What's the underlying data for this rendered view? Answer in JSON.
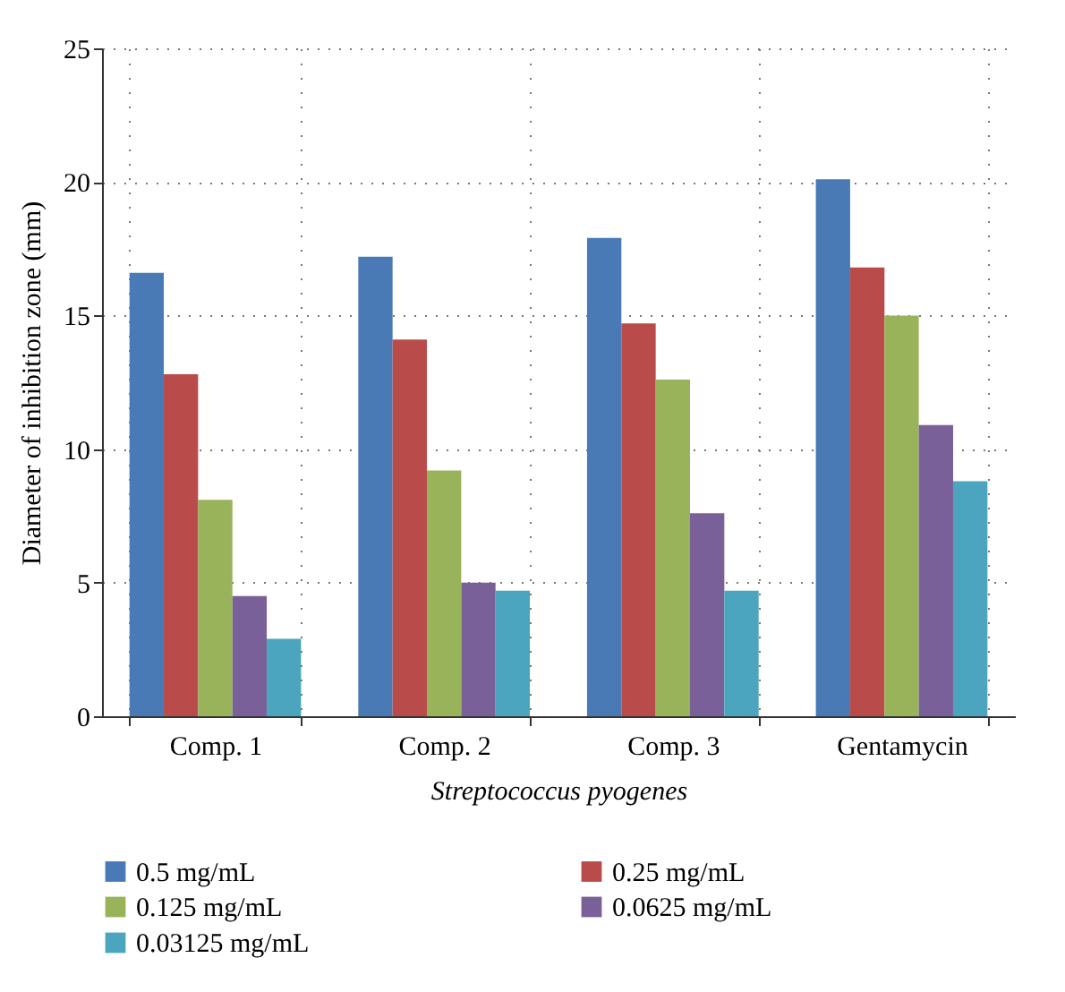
{
  "chart_data": {
    "type": "bar",
    "xlabel": "Streptococcus pyogenes",
    "ylabel": "Diameter of inhibition zone (mm)",
    "categories": [
      "Comp. 1",
      "Comp. 2",
      "Comp. 3",
      "Gentamycin"
    ],
    "series": [
      {
        "name": "0.5 mg/mL",
        "color": "#4a7ab5",
        "values": [
          16.6,
          17.2,
          17.9,
          20.1
        ]
      },
      {
        "name": "0.25 mg/mL",
        "color": "#b94c4a",
        "values": [
          12.8,
          14.1,
          14.7,
          16.8
        ]
      },
      {
        "name": "0.125 mg/mL",
        "color": "#98b35a",
        "values": [
          8.1,
          9.2,
          12.6,
          15.0
        ]
      },
      {
        "name": "0.0625 mg/mL",
        "color": "#7a6098",
        "values": [
          4.5,
          5.0,
          7.6,
          10.9
        ]
      },
      {
        "name": "0.03125 mg/mL",
        "color": "#4ba5be",
        "values": [
          2.9,
          4.7,
          4.7,
          8.8
        ]
      }
    ],
    "ylim": [
      0,
      25
    ],
    "yticks": [
      0,
      5,
      10,
      15,
      20,
      25
    ],
    "grid": true,
    "legend": "bottom"
  }
}
